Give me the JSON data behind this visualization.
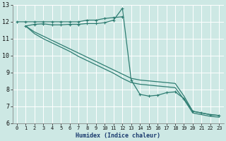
{
  "xlabel": "Humidex (Indice chaleur)",
  "background_color": "#cde8e4",
  "grid_color": "#ffffff",
  "line_color": "#2e7d72",
  "xlim": [
    -0.5,
    23.5
  ],
  "ylim": [
    6,
    13
  ],
  "xticks": [
    0,
    1,
    2,
    3,
    4,
    5,
    6,
    7,
    8,
    9,
    10,
    11,
    12,
    13,
    14,
    15,
    16,
    17,
    18,
    19,
    20,
    21,
    22,
    23
  ],
  "yticks": [
    6,
    7,
    8,
    9,
    10,
    11,
    12,
    13
  ],
  "line1_x": [
    0,
    1,
    2,
    3,
    4,
    5,
    6,
    7,
    8,
    9,
    10,
    11,
    12
  ],
  "line1_y": [
    12.0,
    12.0,
    12.0,
    12.0,
    12.0,
    12.0,
    12.0,
    12.0,
    12.1,
    12.1,
    12.2,
    12.25,
    12.3
  ],
  "line2_x": [
    1,
    2,
    3,
    4,
    5,
    6,
    7,
    8,
    9,
    10,
    11,
    12,
    13,
    14,
    15,
    16,
    17,
    18,
    19,
    20,
    21,
    22,
    23
  ],
  "line2_y": [
    11.75,
    11.4,
    11.15,
    10.9,
    10.65,
    10.4,
    10.15,
    9.9,
    9.65,
    9.4,
    9.15,
    8.9,
    8.65,
    8.55,
    8.5,
    8.45,
    8.4,
    8.35,
    7.6,
    6.7,
    6.6,
    6.5,
    6.45
  ],
  "line3_x": [
    1,
    2,
    3,
    4,
    5,
    6,
    7,
    8,
    9,
    10,
    11,
    12,
    13,
    14,
    15,
    16,
    17,
    18,
    19,
    20,
    21,
    22,
    23
  ],
  "line3_y": [
    11.75,
    11.3,
    11.0,
    10.75,
    10.5,
    10.25,
    9.95,
    9.7,
    9.45,
    9.2,
    8.95,
    8.65,
    8.4,
    8.3,
    8.25,
    8.2,
    8.15,
    8.1,
    7.4,
    6.6,
    6.5,
    6.4,
    6.35
  ],
  "line4_x": [
    1,
    2,
    3,
    4,
    5,
    6,
    7,
    8,
    9,
    10,
    11,
    12,
    13,
    14,
    15,
    16,
    17,
    18,
    19,
    20,
    21,
    22,
    23
  ],
  "line4_y": [
    11.75,
    11.85,
    11.88,
    11.82,
    11.82,
    11.85,
    11.85,
    11.9,
    11.9,
    11.95,
    12.1,
    12.8,
    8.55,
    7.7,
    7.6,
    7.65,
    7.8,
    7.85,
    7.45,
    6.7,
    6.6,
    6.5,
    6.45
  ]
}
